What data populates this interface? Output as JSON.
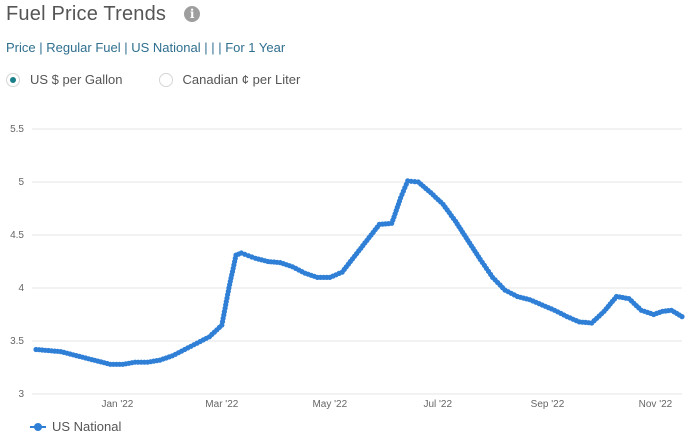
{
  "header": {
    "title": "Fuel Price Trends",
    "info_icon": "info-icon",
    "subtitle": "Price | Regular Fuel | US National | | | For 1 Year"
  },
  "units": {
    "options": [
      {
        "label": "US $ per Gallon",
        "selected": true
      },
      {
        "label": "Canadian ¢ per Liter",
        "selected": false
      }
    ]
  },
  "colors": {
    "series": "#2f7fd6",
    "grid": "#e6e6e6",
    "accent": "#1a7f8a"
  },
  "chart_data": {
    "type": "line",
    "title": "",
    "xlabel": "",
    "ylabel": "",
    "ylim": [
      3,
      5.5
    ],
    "y_ticks": [
      "3",
      "3.5",
      "4",
      "4.5",
      "5",
      "5.5"
    ],
    "x_ticks": [
      {
        "label": "Jan '22",
        "date": "2022-01-01"
      },
      {
        "label": "Mar '22",
        "date": "2022-03-01"
      },
      {
        "label": "May '22",
        "date": "2022-05-01"
      },
      {
        "label": "Jul '22",
        "date": "2022-07-01"
      },
      {
        "label": "Sep '22",
        "date": "2022-09-01"
      },
      {
        "label": "Nov '22",
        "date": "2022-11-01"
      }
    ],
    "x_range": [
      "2021-11-16",
      "2022-11-16"
    ],
    "grid": "horizontal",
    "legend": "bottom-left",
    "series": [
      {
        "name": "US National",
        "points": [
          [
            "2021-11-16",
            3.42
          ],
          [
            "2021-11-23",
            3.41
          ],
          [
            "2021-11-30",
            3.4
          ],
          [
            "2021-12-07",
            3.37
          ],
          [
            "2021-12-14",
            3.34
          ],
          [
            "2021-12-21",
            3.31
          ],
          [
            "2021-12-28",
            3.28
          ],
          [
            "2022-01-04",
            3.28
          ],
          [
            "2022-01-11",
            3.3
          ],
          [
            "2022-01-18",
            3.3
          ],
          [
            "2022-01-25",
            3.32
          ],
          [
            "2022-02-01",
            3.36
          ],
          [
            "2022-02-08",
            3.42
          ],
          [
            "2022-02-15",
            3.48
          ],
          [
            "2022-02-22",
            3.54
          ],
          [
            "2022-03-01",
            3.65
          ],
          [
            "2022-03-05",
            4.0
          ],
          [
            "2022-03-09",
            4.31
          ],
          [
            "2022-03-12",
            4.33
          ],
          [
            "2022-03-20",
            4.28
          ],
          [
            "2022-03-27",
            4.25
          ],
          [
            "2022-04-03",
            4.24
          ],
          [
            "2022-04-10",
            4.2
          ],
          [
            "2022-04-17",
            4.14
          ],
          [
            "2022-04-24",
            4.1
          ],
          [
            "2022-05-01",
            4.1
          ],
          [
            "2022-05-08",
            4.15
          ],
          [
            "2022-05-15",
            4.3
          ],
          [
            "2022-05-22",
            4.45
          ],
          [
            "2022-05-29",
            4.6
          ],
          [
            "2022-06-05",
            4.61
          ],
          [
            "2022-06-10",
            4.85
          ],
          [
            "2022-06-14",
            5.01
          ],
          [
            "2022-06-20",
            5.0
          ],
          [
            "2022-06-27",
            4.9
          ],
          [
            "2022-07-04",
            4.79
          ],
          [
            "2022-07-11",
            4.63
          ],
          [
            "2022-07-18",
            4.45
          ],
          [
            "2022-07-25",
            4.27
          ],
          [
            "2022-08-01",
            4.1
          ],
          [
            "2022-08-08",
            3.98
          ],
          [
            "2022-08-15",
            3.92
          ],
          [
            "2022-08-22",
            3.89
          ],
          [
            "2022-08-29",
            3.84
          ],
          [
            "2022-09-05",
            3.79
          ],
          [
            "2022-09-12",
            3.73
          ],
          [
            "2022-09-19",
            3.68
          ],
          [
            "2022-09-26",
            3.67
          ],
          [
            "2022-10-03",
            3.78
          ],
          [
            "2022-10-10",
            3.92
          ],
          [
            "2022-10-17",
            3.9
          ],
          [
            "2022-10-24",
            3.79
          ],
          [
            "2022-10-31",
            3.75
          ],
          [
            "2022-11-05",
            3.78
          ],
          [
            "2022-11-10",
            3.79
          ],
          [
            "2022-11-16",
            3.73
          ]
        ]
      }
    ]
  }
}
